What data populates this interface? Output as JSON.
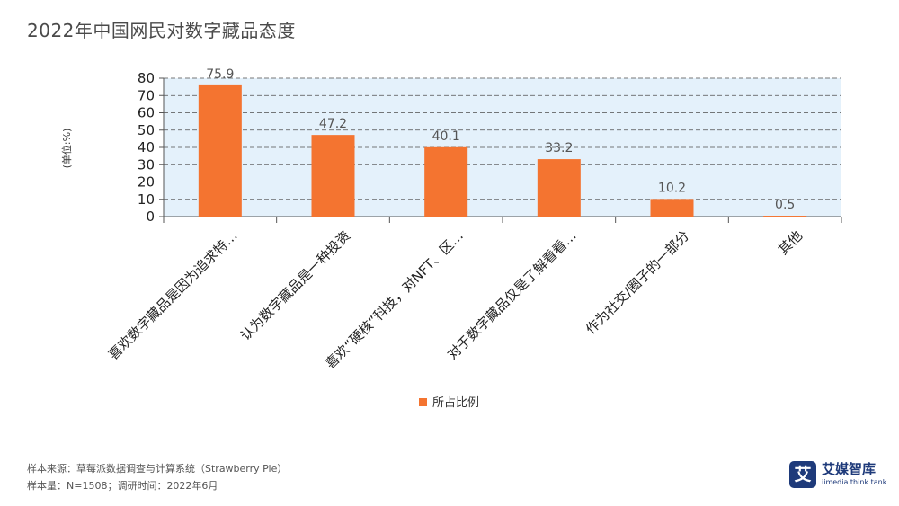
{
  "title": "2022年中国网民对数字藏品态度",
  "chart_data": {
    "type": "bar",
    "ylabel": "(单位:%)",
    "ylim": [
      0,
      80
    ],
    "yticks": [
      0,
      10,
      20,
      30,
      40,
      50,
      60,
      70,
      80
    ],
    "grid": true,
    "categories": [
      "喜欢数字藏品是因为追求特…",
      "认为数字藏品是一种投资",
      "喜欢“硬核”科技，对NFT、区…",
      "对于数字藏品仅是了解看看…",
      "作为社交/圈子的一部分",
      "其他"
    ],
    "series": [
      {
        "name": "所占比例",
        "values": [
          75.9,
          47.2,
          40.1,
          33.2,
          10.2,
          0.5
        ]
      }
    ],
    "data_labels": [
      "75.9",
      "47.2",
      "40.1",
      "33.2",
      "10.2",
      "0.5"
    ],
    "legend": "bottom-center",
    "bar_color": "#f47430",
    "plot_background": "#e4f1fb"
  },
  "source": {
    "line1": "样本来源：草莓派数据调查与计算系统（Strawberry Pie）",
    "line2": "样本量：N=1508；调研时间：2022年6月"
  },
  "logo": {
    "mark": "艾",
    "name": "艾媒智库",
    "sub": "iimedia think tank"
  }
}
